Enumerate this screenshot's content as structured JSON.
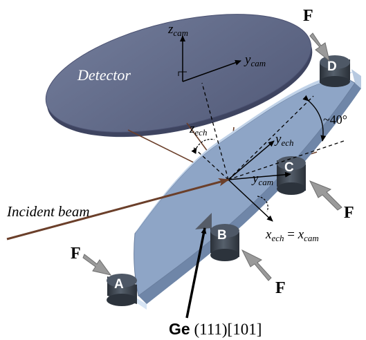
{
  "detector": {
    "label": "Detector"
  },
  "axes": {
    "z_cam": {
      "base": "z",
      "sub": "cam"
    },
    "y_cam_top": {
      "base": "y",
      "sub": "cam"
    },
    "z_ech": {
      "base": "z",
      "sub": "ech"
    },
    "y_ech": {
      "base": "y",
      "sub": "ech"
    },
    "y_cam_low": {
      "base": "y",
      "sub": "cam"
    },
    "x_equal": {
      "left_base": "x",
      "left_sub": "ech",
      "eq": " = ",
      "right_base": "x",
      "right_sub": "cam"
    }
  },
  "angle_label": "~40°",
  "incident_beam": "Incident beam",
  "force_label": "F",
  "supports": [
    "A",
    "B",
    "C",
    "D"
  ],
  "crystal": {
    "element": "Ge",
    "orientation": " (111)[101]"
  },
  "colors": {
    "detector_top": "#606888",
    "detector_rim": "#3e4460",
    "crystal_face": "#8ea5c6",
    "crystal_edge": "#c8d8ec",
    "support": "#3c4450",
    "beam": "#6b3f2a",
    "force_arrow": "#9a9a9a"
  }
}
